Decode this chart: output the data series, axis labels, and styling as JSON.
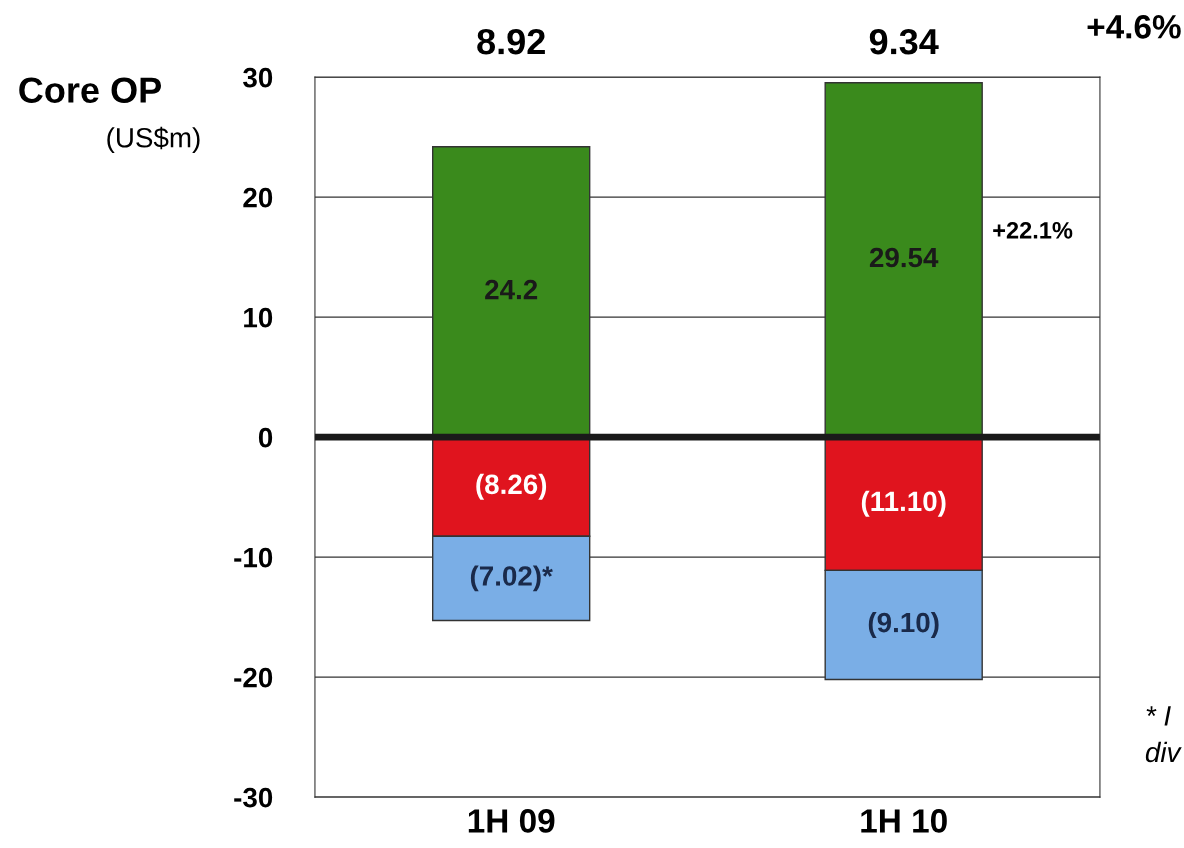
{
  "chart_data": {
    "type": "bar",
    "stacked": true,
    "title": "Core OP",
    "ylabel": "(US$m)",
    "categories": [
      "1H 09",
      "1H 10"
    ],
    "series": [
      {
        "color": "#3a8a1c",
        "values": [
          24.2,
          29.54
        ],
        "value_labels": [
          "24.2",
          "29.54"
        ]
      },
      {
        "color": "#e0141e",
        "values": [
          -8.26,
          -11.1
        ],
        "value_labels": [
          "(8.26)",
          "(11.10)"
        ]
      },
      {
        "color": "#7aaee6",
        "values": [
          -7.02,
          -9.1
        ],
        "value_labels": [
          "(7.02)*",
          "(9.10)"
        ]
      }
    ],
    "totals": [
      "8.92",
      "9.34"
    ],
    "annotations": [
      "+4.6%",
      "+22.1%",
      "* I",
      "div"
    ],
    "ylim": [
      -30,
      30
    ],
    "yticks": [
      -30,
      -20,
      -10,
      0,
      10,
      20,
      30
    ],
    "grid": "y",
    "ref_lines": [
      {
        "axis": "y",
        "value": 0,
        "color": "#1a1a1a"
      }
    ]
  }
}
